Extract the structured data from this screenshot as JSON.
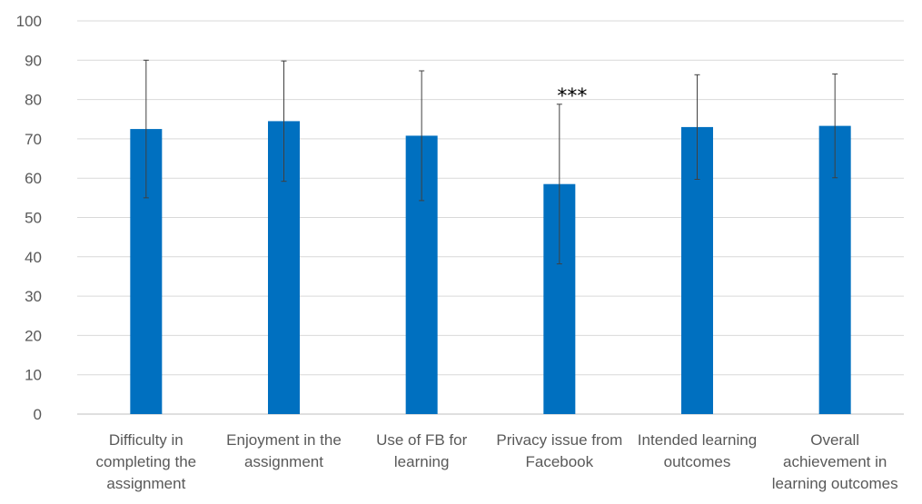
{
  "chart_data": {
    "type": "bar",
    "title": "",
    "xlabel": "",
    "ylabel": "",
    "ylim": [
      0,
      100
    ],
    "yticks": [
      0,
      10,
      20,
      30,
      40,
      50,
      60,
      70,
      80,
      90,
      100
    ],
    "grid": true,
    "legend": "none",
    "colors": {
      "bar": "#0070c0",
      "grid": "#d9d9d9",
      "text": "#595959"
    },
    "categories": [
      [
        "Difficulty in",
        "completing the",
        "assignment"
      ],
      [
        "Enjoyment in the",
        "assignment"
      ],
      [
        "Use of FB for",
        "learning"
      ],
      [
        "Privacy issue from",
        "Facebook"
      ],
      [
        "Intended learning",
        "outcomes"
      ],
      [
        "Overall",
        "achievement in",
        "learning outcomes"
      ]
    ],
    "values": [
      72.5,
      74.5,
      70.8,
      58.5,
      73.0,
      73.3
    ],
    "error_plus": [
      17.5,
      15.3,
      16.5,
      20.3,
      13.3,
      13.2
    ],
    "error_minus": [
      17.5,
      15.3,
      16.5,
      20.3,
      13.3,
      13.2
    ],
    "annotations": [
      {
        "category_index": 3,
        "text": "***"
      }
    ]
  }
}
